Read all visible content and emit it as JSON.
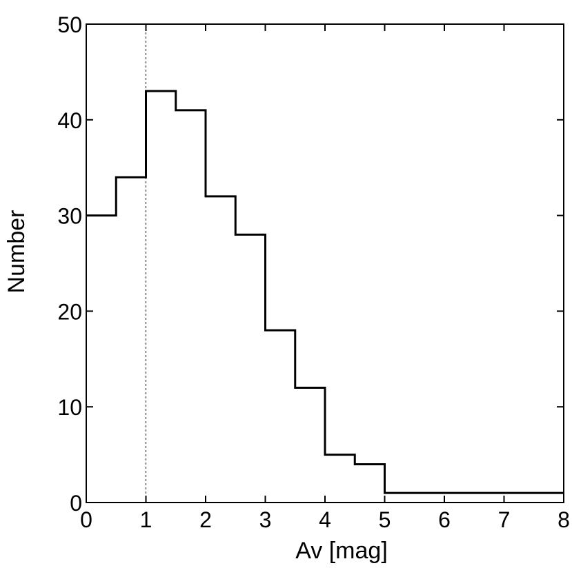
{
  "chart_data": {
    "type": "histogram",
    "xlabel": "Av  [mag]",
    "ylabel": "Number",
    "xlim": [
      0,
      8
    ],
    "ylim": [
      0,
      50
    ],
    "xticks": [
      0,
      1,
      2,
      3,
      4,
      5,
      6,
      7,
      8
    ],
    "yticks": [
      0,
      10,
      20,
      30,
      40,
      50
    ],
    "bin_edges": [
      0,
      0.5,
      1,
      1.5,
      2,
      2.5,
      3,
      3.5,
      4,
      4.5,
      5,
      8
    ],
    "counts": [
      30,
      34,
      43,
      41,
      32,
      28,
      18,
      12,
      5,
      4,
      1
    ],
    "reference_line_x": 1,
    "grid": false,
    "colors": {
      "line": "#000000",
      "background": "#ffffff"
    }
  }
}
